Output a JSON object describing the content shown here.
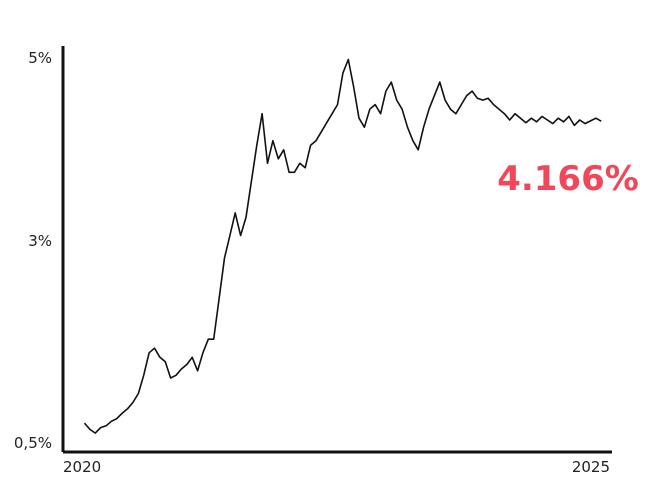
{
  "chart_data": {
    "type": "line",
    "title": "",
    "xlabel": "",
    "ylabel": "",
    "xlim": [
      2020,
      2025.1
    ],
    "ylim": [
      0.5,
      5
    ],
    "y_ticks": [
      {
        "value": 5,
        "label": "5%"
      },
      {
        "value": 3,
        "label": "3%"
      },
      {
        "value": 0.5,
        "label": "0,5%"
      }
    ],
    "x_ticks": [
      {
        "value": 2020,
        "label": "2020"
      },
      {
        "value": 2025,
        "label": "2025"
      }
    ],
    "grid": false,
    "legend": "none",
    "annotation": {
      "label": "4.166%",
      "color": "#f0485a"
    },
    "line_color": "#111111",
    "series": [
      {
        "x": [
          2020.2,
          2020.25,
          2020.3,
          2020.35,
          2020.4,
          2020.45,
          2020.5,
          2020.55,
          2020.6,
          2020.65,
          2020.7,
          2020.75,
          2020.8,
          2020.85,
          2020.9,
          2020.95,
          2021.0,
          2021.05,
          2021.1,
          2021.15,
          2021.2,
          2021.25,
          2021.3,
          2021.35,
          2021.4,
          2021.45,
          2021.5,
          2021.55,
          2021.6,
          2021.65,
          2021.7,
          2021.75,
          2021.8,
          2021.85,
          2021.9,
          2021.95,
          2022.0,
          2022.05,
          2022.1,
          2022.15,
          2022.2,
          2022.25,
          2022.3,
          2022.35,
          2022.4,
          2022.45,
          2022.5,
          2022.55,
          2022.6,
          2022.65,
          2022.7,
          2022.75,
          2022.8,
          2022.85,
          2022.9,
          2022.95,
          2023.0,
          2023.05,
          2023.1,
          2023.15,
          2023.2,
          2023.25,
          2023.3,
          2023.35,
          2023.4,
          2023.45,
          2023.5,
          2023.55,
          2023.6,
          2023.65,
          2023.7,
          2023.75,
          2023.8,
          2023.85,
          2023.9,
          2023.95,
          2024.0,
          2024.05,
          2024.1,
          2024.15,
          2024.2,
          2024.25,
          2024.3,
          2024.35,
          2024.4,
          2024.45,
          2024.5,
          2024.55,
          2024.6,
          2024.65,
          2024.7,
          2024.75,
          2024.8,
          2024.85,
          2024.9,
          2024.95,
          2025.0
        ],
        "y": [
          0.82,
          0.75,
          0.71,
          0.77,
          0.79,
          0.84,
          0.87,
          0.93,
          0.98,
          1.05,
          1.15,
          1.35,
          1.6,
          1.65,
          1.55,
          1.5,
          1.32,
          1.35,
          1.42,
          1.47,
          1.55,
          1.4,
          1.6,
          1.75,
          1.75,
          2.2,
          2.65,
          2.9,
          3.15,
          2.9,
          3.1,
          3.5,
          3.9,
          4.25,
          3.7,
          3.95,
          3.75,
          3.85,
          3.6,
          3.6,
          3.7,
          3.65,
          3.9,
          3.95,
          4.05,
          4.15,
          4.25,
          4.35,
          4.7,
          4.85,
          4.55,
          4.2,
          4.1,
          4.3,
          4.35,
          4.25,
          4.5,
          4.6,
          4.4,
          4.3,
          4.1,
          3.95,
          3.85,
          4.1,
          4.3,
          4.45,
          4.6,
          4.4,
          4.3,
          4.25,
          4.35,
          4.45,
          4.5,
          4.42,
          4.4,
          4.42,
          4.35,
          4.3,
          4.25,
          4.18,
          4.25,
          4.2,
          4.15,
          4.2,
          4.16,
          4.22,
          4.18,
          4.14,
          4.2,
          4.16,
          4.22,
          4.12,
          4.18,
          4.14,
          4.17,
          4.2,
          4.166
        ]
      }
    ]
  }
}
